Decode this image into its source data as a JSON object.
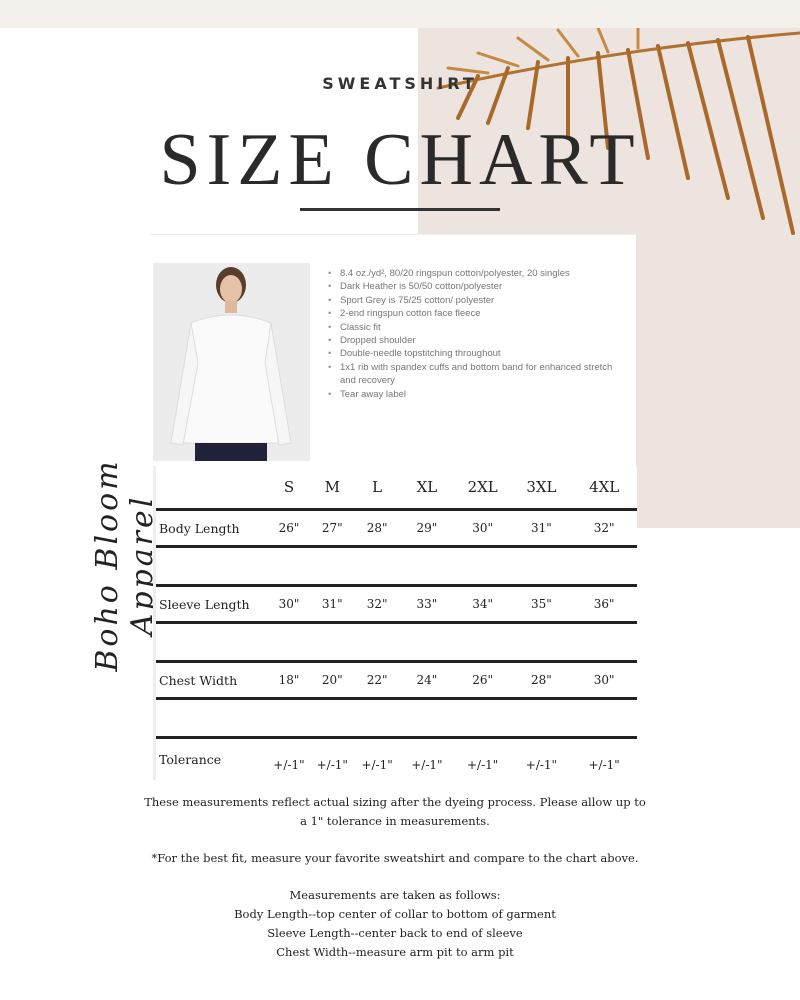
{
  "header": {
    "eyebrow": "SWEATSHIRT",
    "title": "SIZE CHART"
  },
  "brand": "Boho Bloom Apparel",
  "colors": {
    "panel": "#ede4e0",
    "band": "#f4f0eb",
    "leaf": "#b0722f",
    "text": "#222222"
  },
  "features": [
    "8.4 oz./yd², 80/20 ringspun cotton/polyester, 20 singles",
    "Dark Heather is 50/50 cotton/polyester",
    "Sport Grey is 75/25 cotton/ polyester",
    "2-end ringspun cotton face fleece",
    "Classic fit",
    "Dropped shoulder",
    "Double-needle topstitching throughout",
    "1x1 rib with spandex cuffs and bottom band for enhanced stretch and recovery",
    "Tear away label"
  ],
  "table": {
    "sizes": [
      "S",
      "M",
      "L",
      "XL",
      "2XL",
      "3XL",
      "4XL"
    ],
    "rows": [
      {
        "label": "Body Length",
        "values": [
          "26\"",
          "27\"",
          "28\"",
          "29\"",
          "30\"",
          "31\"",
          "32\""
        ]
      },
      {
        "label": "Sleeve Length",
        "values": [
          "30\"",
          "31\"",
          "32\"",
          "33\"",
          "34\"",
          "35\"",
          "36\""
        ]
      },
      {
        "label": "Chest Width",
        "values": [
          "18\"",
          "20\"",
          "22\"",
          "24\"",
          "26\"",
          "28\"",
          "30\""
        ]
      },
      {
        "label": "Tolerance",
        "values": [
          "+/-1\"",
          "+/-1\"",
          "+/-1\"",
          "+/-1\"",
          "+/-1\"",
          "+/-1\"",
          "+/-1\""
        ]
      }
    ]
  },
  "notes": {
    "p1": "These measurements reflect actual sizing after the dyeing process. Please allow up to a 1\" tolerance in measurements.",
    "p2": "*For the best fit, measure your favorite sweatshirt and compare to the chart above.",
    "p3": "Measurements are taken as follows:",
    "p4": "Body Length--top center of collar to bottom of garment",
    "p5": "Sleeve Length--center back to end of sleeve",
    "p6": "Chest Width--measure arm pit to arm pit"
  }
}
